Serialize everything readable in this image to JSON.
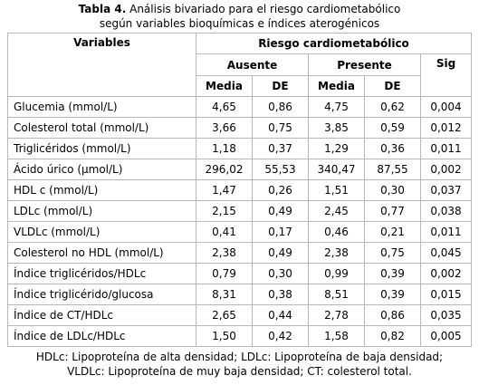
{
  "title": {
    "label": "Tabla 4.",
    "line1": "Análisis bivariado para el riesgo cardiometabólico",
    "line2": "según variables bioquímicas e índices aterogénicos"
  },
  "table": {
    "header": {
      "variables": "Variables",
      "group": "Riesgo cardiometabólico",
      "ausente": "Ausente",
      "presente": "Presente",
      "sig": "Sig",
      "subcols": [
        "Media",
        "DE",
        "Media",
        "DE"
      ]
    },
    "rows": [
      [
        "Glucemia (mmol/L)",
        "4,65",
        "0,86",
        "4,75",
        "0,62",
        "0,004"
      ],
      [
        "Colesterol total (mmol/L)",
        "3,66",
        "0,75",
        "3,85",
        "0,59",
        "0,012"
      ],
      [
        "Triglicéridos (mmol/L)",
        "1,18",
        "0,37",
        "1,29",
        "0,36",
        "0,011"
      ],
      [
        "Ácido úrico (µmol/L)",
        "296,02",
        "55,53",
        "340,47",
        "87,55",
        "0,002"
      ],
      [
        "HDL c (mmol/L)",
        "1,47",
        "0,26",
        "1,51",
        "0,30",
        "0,037"
      ],
      [
        "LDLc (mmol/L)",
        "2,15",
        "0,49",
        "2,45",
        "0,77",
        "0,038"
      ],
      [
        "VLDLc (mmol/L)",
        "0,41",
        "0,17",
        "0,46",
        "0,21",
        "0,011"
      ],
      [
        "Colesterol no HDL (mmol/L)",
        "2,38",
        "0,49",
        "2,38",
        "0,75",
        "0,045"
      ],
      [
        "Índice triglicéridos/HDLc",
        "0,79",
        "0,30",
        "0,99",
        "0,39",
        "0,002"
      ],
      [
        "Índice triglicérido/glucosa",
        "8,31",
        "0,38",
        "8,51",
        "0,39",
        "0,015"
      ],
      [
        "Índice de CT/HDLc",
        "2,65",
        "0,44",
        "2,78",
        "0,86",
        "0,035"
      ],
      [
        "Índice de LDLc/HDLc",
        "1,50",
        "0,42",
        "1,58",
        "0,82",
        "0,005"
      ]
    ]
  },
  "footnote": {
    "line1": "HDLc: Lipoproteína de alta densidad; LDLc: Lipoproteína de baja densidad;",
    "line2": "VLDLc: Lipoproteína de muy baja densidad; CT: colesterol total."
  }
}
